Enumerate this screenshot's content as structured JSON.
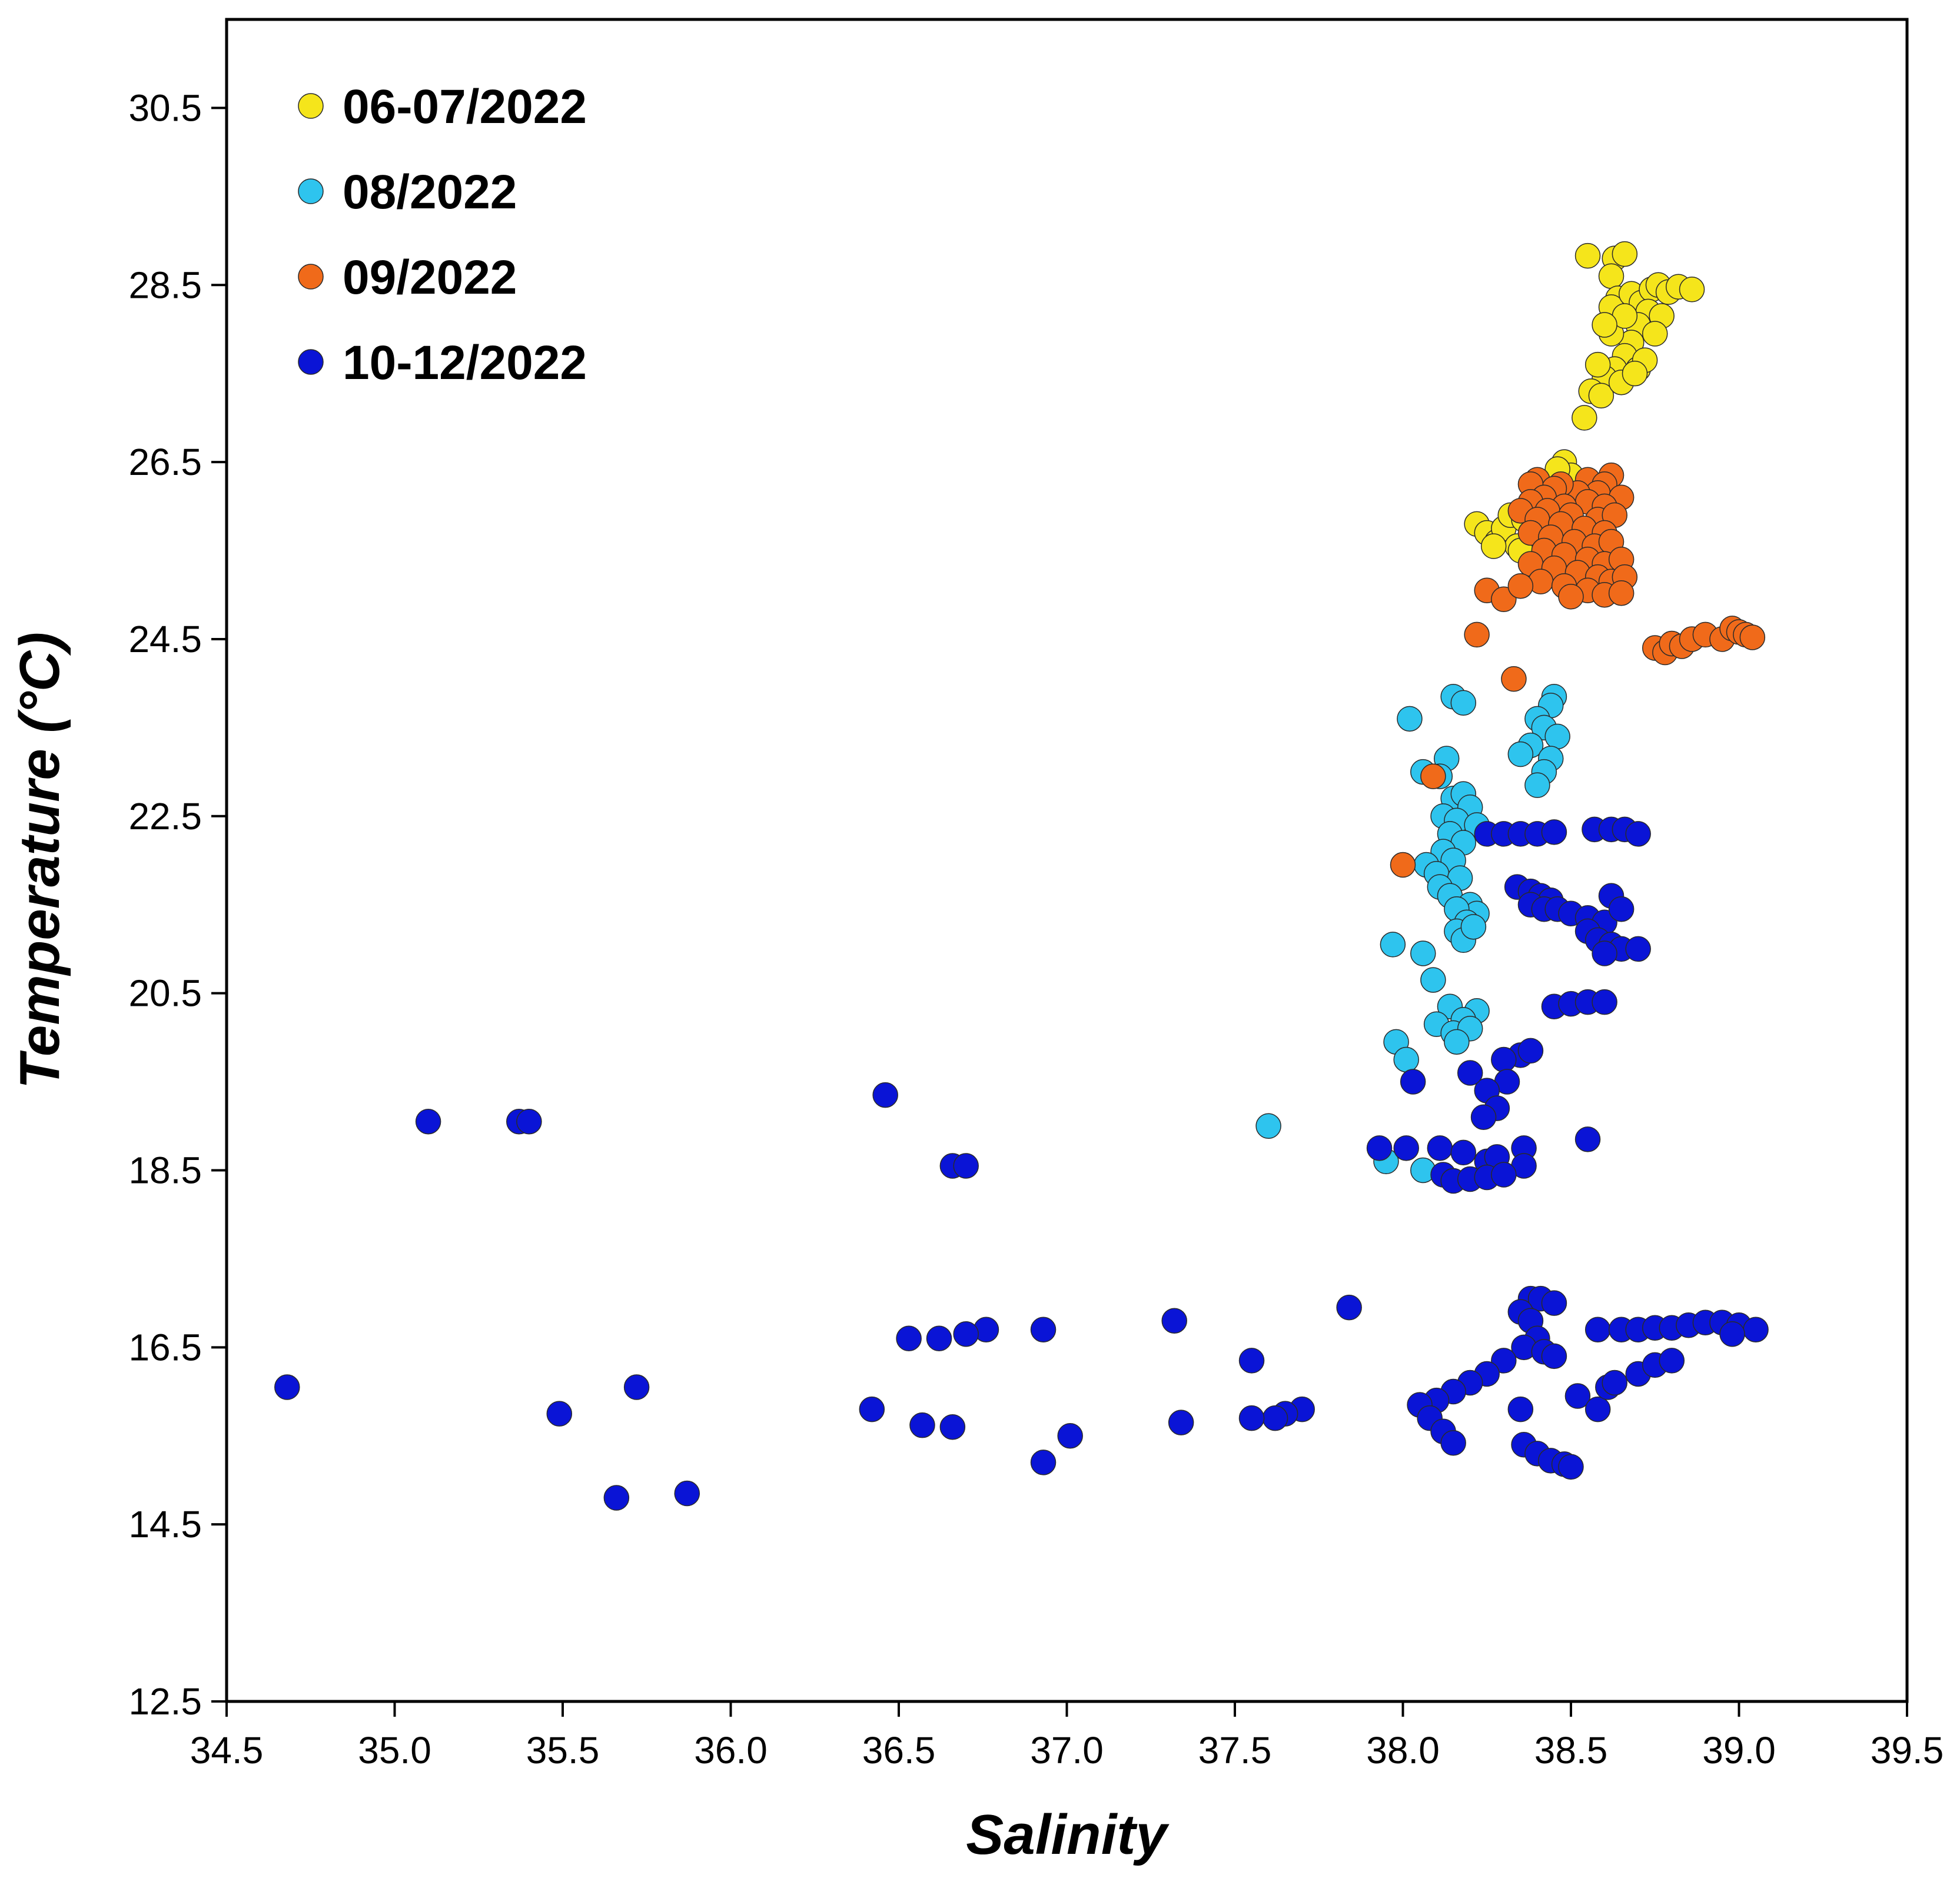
{
  "chart_data": {
    "type": "scatter",
    "title": "",
    "xlabel": "Salinity",
    "ylabel": "Temperature (°C)",
    "xlim": [
      34.5,
      39.5
    ],
    "ylim": [
      12.5,
      31.5
    ],
    "xticks": [
      "34.5",
      "35.0",
      "35.5",
      "36.0",
      "36.5",
      "37.0",
      "37.5",
      "38.0",
      "38.5",
      "39.0",
      "39.5"
    ],
    "yticks": [
      "12.5",
      "14.5",
      "16.5",
      "18.5",
      "20.5",
      "22.5",
      "24.5",
      "26.5",
      "28.5",
      "30.5"
    ],
    "legend_position": "top-left",
    "grid": false,
    "series": [
      {
        "name": "06-07/2022",
        "color": "#f5e51b",
        "points": [
          [
            38.55,
            28.83
          ],
          [
            38.63,
            28.8
          ],
          [
            38.66,
            28.85
          ],
          [
            38.62,
            28.6
          ],
          [
            38.64,
            28.35
          ],
          [
            38.62,
            28.25
          ],
          [
            38.68,
            28.4
          ],
          [
            38.71,
            28.3
          ],
          [
            38.74,
            28.45
          ],
          [
            38.76,
            28.5
          ],
          [
            38.79,
            28.42
          ],
          [
            38.82,
            28.48
          ],
          [
            38.86,
            28.45
          ],
          [
            38.73,
            28.2
          ],
          [
            38.7,
            28.05
          ],
          [
            38.77,
            28.15
          ],
          [
            38.75,
            27.95
          ],
          [
            38.68,
            27.85
          ],
          [
            38.66,
            27.7
          ],
          [
            38.63,
            27.55
          ],
          [
            38.7,
            27.55
          ],
          [
            38.6,
            27.45
          ],
          [
            38.56,
            27.3
          ],
          [
            38.59,
            27.25
          ],
          [
            38.65,
            27.4
          ],
          [
            38.58,
            27.6
          ],
          [
            38.54,
            27.0
          ],
          [
            38.72,
            27.65
          ],
          [
            38.69,
            27.5
          ],
          [
            38.62,
            27.95
          ],
          [
            38.66,
            28.15
          ],
          [
            38.6,
            28.05
          ],
          [
            38.48,
            26.5
          ],
          [
            38.5,
            26.35
          ],
          [
            38.46,
            26.42
          ],
          [
            38.22,
            25.8
          ],
          [
            38.25,
            25.7
          ],
          [
            38.28,
            25.6
          ],
          [
            38.3,
            25.75
          ],
          [
            38.32,
            25.9
          ],
          [
            38.34,
            25.55
          ],
          [
            38.36,
            25.85
          ],
          [
            38.35,
            25.5
          ],
          [
            38.27,
            25.55
          ]
        ]
      },
      {
        "name": "08/2022",
        "color": "#2ec4ee",
        "points": [
          [
            38.02,
            23.6
          ],
          [
            38.15,
            23.85
          ],
          [
            38.18,
            23.78
          ],
          [
            38.13,
            23.15
          ],
          [
            38.06,
            23.0
          ],
          [
            38.11,
            22.95
          ],
          [
            38.45,
            23.85
          ],
          [
            38.44,
            23.75
          ],
          [
            38.4,
            23.6
          ],
          [
            38.42,
            23.5
          ],
          [
            38.46,
            23.4
          ],
          [
            38.38,
            23.3
          ],
          [
            38.35,
            23.2
          ],
          [
            38.44,
            23.15
          ],
          [
            38.42,
            23.0
          ],
          [
            38.4,
            22.85
          ],
          [
            38.15,
            22.7
          ],
          [
            38.18,
            22.75
          ],
          [
            38.2,
            22.6
          ],
          [
            38.12,
            22.5
          ],
          [
            38.16,
            22.45
          ],
          [
            38.22,
            22.4
          ],
          [
            38.14,
            22.3
          ],
          [
            38.18,
            22.2
          ],
          [
            38.12,
            22.1
          ],
          [
            38.15,
            22.0
          ],
          [
            38.07,
            21.95
          ],
          [
            38.1,
            21.85
          ],
          [
            38.17,
            21.8
          ],
          [
            38.11,
            21.7
          ],
          [
            38.14,
            21.6
          ],
          [
            38.2,
            21.5
          ],
          [
            38.22,
            21.4
          ],
          [
            38.16,
            21.45
          ],
          [
            38.19,
            21.3
          ],
          [
            38.16,
            21.2
          ],
          [
            38.18,
            21.1
          ],
          [
            38.21,
            21.25
          ],
          [
            37.97,
            21.05
          ],
          [
            38.06,
            20.95
          ],
          [
            38.09,
            20.65
          ],
          [
            38.14,
            20.35
          ],
          [
            38.22,
            20.3
          ],
          [
            38.18,
            20.2
          ],
          [
            38.1,
            20.15
          ],
          [
            38.15,
            20.05
          ],
          [
            38.2,
            20.1
          ],
          [
            38.16,
            19.95
          ],
          [
            37.98,
            19.95
          ],
          [
            38.01,
            19.75
          ],
          [
            37.6,
            19.0
          ],
          [
            37.95,
            18.6
          ],
          [
            38.06,
            18.5
          ]
        ]
      },
      {
        "name": "09/2022",
        "color": "#f06a1a",
        "points": [
          [
            38.62,
            26.35
          ],
          [
            38.55,
            26.3
          ],
          [
            38.6,
            26.25
          ],
          [
            38.58,
            26.15
          ],
          [
            38.65,
            26.1
          ],
          [
            38.52,
            26.15
          ],
          [
            38.47,
            26.25
          ],
          [
            38.4,
            26.3
          ],
          [
            38.45,
            26.2
          ],
          [
            38.38,
            26.25
          ],
          [
            38.42,
            26.1
          ],
          [
            38.55,
            26.05
          ],
          [
            38.48,
            26.0
          ],
          [
            38.6,
            26.0
          ],
          [
            38.38,
            26.05
          ],
          [
            38.43,
            25.95
          ],
          [
            38.5,
            25.9
          ],
          [
            38.58,
            25.85
          ],
          [
            38.63,
            25.9
          ],
          [
            38.35,
            25.95
          ],
          [
            38.4,
            25.85
          ],
          [
            38.47,
            25.8
          ],
          [
            38.54,
            25.75
          ],
          [
            38.6,
            25.7
          ],
          [
            38.38,
            25.7
          ],
          [
            38.44,
            25.65
          ],
          [
            38.51,
            25.6
          ],
          [
            38.57,
            25.55
          ],
          [
            38.62,
            25.6
          ],
          [
            38.42,
            25.5
          ],
          [
            38.48,
            25.45
          ],
          [
            38.55,
            25.4
          ],
          [
            38.6,
            25.35
          ],
          [
            38.65,
            25.4
          ],
          [
            38.38,
            25.35
          ],
          [
            38.45,
            25.3
          ],
          [
            38.52,
            25.25
          ],
          [
            38.58,
            25.2
          ],
          [
            38.62,
            25.15
          ],
          [
            38.66,
            25.2
          ],
          [
            38.41,
            25.15
          ],
          [
            38.48,
            25.1
          ],
          [
            38.55,
            25.05
          ],
          [
            38.6,
            25.0
          ],
          [
            38.25,
            25.05
          ],
          [
            38.3,
            24.95
          ],
          [
            38.35,
            25.1
          ],
          [
            38.5,
            24.98
          ],
          [
            38.65,
            25.02
          ],
          [
            38.22,
            24.55
          ],
          [
            38.33,
            24.05
          ],
          [
            38.75,
            24.4
          ],
          [
            38.78,
            24.35
          ],
          [
            38.8,
            24.45
          ],
          [
            38.83,
            24.42
          ],
          [
            38.86,
            24.5
          ],
          [
            38.9,
            24.55
          ],
          [
            38.95,
            24.5
          ],
          [
            38.98,
            24.62
          ],
          [
            39.0,
            24.58
          ],
          [
            39.02,
            24.55
          ],
          [
            39.04,
            24.52
          ],
          [
            38.0,
            21.95
          ],
          [
            38.09,
            22.95
          ]
        ]
      },
      {
        "name": "10-12/2022",
        "color": "#0a14d6",
        "points": [
          [
            38.25,
            22.3
          ],
          [
            38.3,
            22.3
          ],
          [
            38.35,
            22.3
          ],
          [
            38.4,
            22.3
          ],
          [
            38.45,
            22.32
          ],
          [
            38.57,
            22.35
          ],
          [
            38.62,
            22.35
          ],
          [
            38.66,
            22.35
          ],
          [
            38.7,
            22.3
          ],
          [
            38.34,
            21.7
          ],
          [
            38.38,
            21.65
          ],
          [
            38.41,
            21.6
          ],
          [
            38.44,
            21.55
          ],
          [
            38.38,
            21.5
          ],
          [
            38.42,
            21.45
          ],
          [
            38.46,
            21.45
          ],
          [
            38.5,
            21.4
          ],
          [
            38.55,
            21.35
          ],
          [
            38.6,
            21.3
          ],
          [
            38.55,
            21.2
          ],
          [
            38.58,
            21.1
          ],
          [
            38.62,
            21.05
          ],
          [
            38.65,
            21.0
          ],
          [
            38.6,
            20.95
          ],
          [
            38.7,
            21.0
          ],
          [
            38.62,
            21.6
          ],
          [
            38.65,
            21.45
          ],
          [
            38.45,
            20.35
          ],
          [
            38.5,
            20.38
          ],
          [
            38.55,
            20.4
          ],
          [
            38.6,
            20.4
          ],
          [
            38.35,
            19.8
          ],
          [
            38.3,
            19.75
          ],
          [
            38.38,
            19.85
          ],
          [
            38.31,
            19.5
          ],
          [
            38.25,
            19.4
          ],
          [
            38.28,
            19.2
          ],
          [
            38.24,
            19.1
          ],
          [
            38.2,
            19.6
          ],
          [
            38.03,
            19.5
          ],
          [
            37.93,
            18.75
          ],
          [
            38.01,
            18.75
          ],
          [
            38.11,
            18.75
          ],
          [
            38.18,
            18.7
          ],
          [
            38.25,
            18.6
          ],
          [
            38.28,
            18.65
          ],
          [
            38.36,
            18.75
          ],
          [
            38.36,
            18.55
          ],
          [
            38.12,
            18.45
          ],
          [
            38.15,
            18.38
          ],
          [
            38.2,
            18.4
          ],
          [
            38.25,
            18.42
          ],
          [
            38.3,
            18.45
          ],
          [
            38.55,
            18.85
          ],
          [
            38.38,
            17.05
          ],
          [
            38.41,
            17.05
          ],
          [
            38.45,
            17.0
          ],
          [
            38.35,
            16.9
          ],
          [
            38.38,
            16.8
          ],
          [
            38.4,
            16.6
          ],
          [
            38.36,
            16.5
          ],
          [
            38.42,
            16.45
          ],
          [
            38.45,
            16.4
          ],
          [
            38.3,
            16.35
          ],
          [
            38.25,
            16.2
          ],
          [
            38.2,
            16.1
          ],
          [
            38.15,
            16.0
          ],
          [
            38.1,
            15.9
          ],
          [
            38.05,
            15.85
          ],
          [
            38.08,
            15.7
          ],
          [
            38.12,
            15.55
          ],
          [
            38.15,
            15.42
          ],
          [
            38.35,
            15.8
          ],
          [
            38.36,
            15.4
          ],
          [
            38.4,
            15.3
          ],
          [
            38.44,
            15.22
          ],
          [
            38.48,
            15.18
          ],
          [
            38.5,
            15.15
          ],
          [
            38.52,
            15.95
          ],
          [
            38.58,
            15.8
          ],
          [
            38.61,
            16.05
          ],
          [
            38.63,
            16.1
          ],
          [
            38.7,
            16.2
          ],
          [
            38.75,
            16.3
          ],
          [
            38.8,
            16.35
          ],
          [
            38.58,
            16.7
          ],
          [
            38.65,
            16.7
          ],
          [
            38.7,
            16.7
          ],
          [
            38.75,
            16.72
          ],
          [
            38.8,
            16.72
          ],
          [
            38.85,
            16.75
          ],
          [
            38.9,
            16.78
          ],
          [
            38.95,
            16.78
          ],
          [
            39.0,
            16.75
          ],
          [
            39.05,
            16.7
          ],
          [
            38.98,
            16.65
          ],
          [
            37.84,
            16.95
          ],
          [
            37.32,
            16.8
          ],
          [
            36.93,
            16.7
          ],
          [
            36.76,
            16.7
          ],
          [
            36.7,
            16.65
          ],
          [
            36.62,
            16.6
          ],
          [
            36.53,
            16.6
          ],
          [
            37.55,
            16.35
          ],
          [
            37.7,
            15.8
          ],
          [
            37.65,
            15.75
          ],
          [
            37.62,
            15.7
          ],
          [
            37.55,
            15.7
          ],
          [
            37.34,
            15.65
          ],
          [
            37.01,
            15.5
          ],
          [
            36.93,
            15.2
          ],
          [
            36.66,
            15.6
          ],
          [
            36.57,
            15.62
          ],
          [
            36.42,
            15.8
          ],
          [
            36.46,
            19.35
          ],
          [
            36.66,
            18.55
          ],
          [
            36.7,
            18.55
          ],
          [
            35.1,
            19.05
          ],
          [
            35.37,
            19.05
          ],
          [
            35.4,
            19.05
          ],
          [
            34.68,
            16.05
          ],
          [
            35.72,
            16.05
          ],
          [
            35.49,
            15.75
          ],
          [
            35.66,
            14.8
          ],
          [
            35.87,
            14.85
          ]
        ]
      }
    ]
  }
}
